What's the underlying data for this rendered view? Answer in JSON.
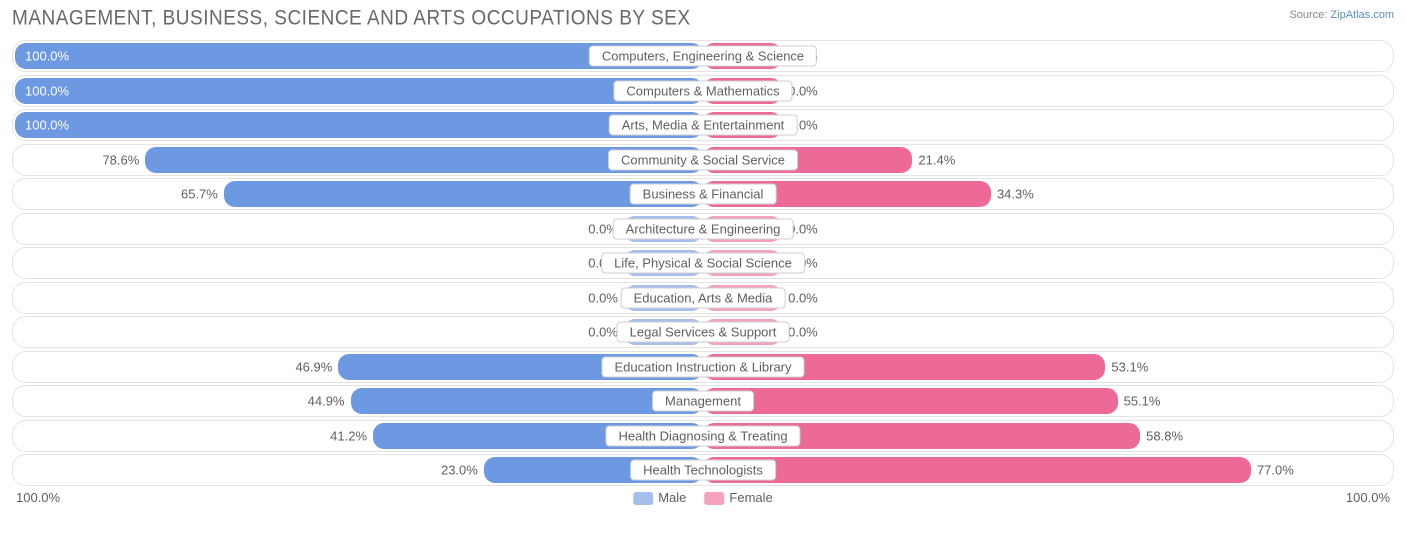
{
  "title": "MANAGEMENT, BUSINESS, SCIENCE AND ARTS OCCUPATIONS BY SEX",
  "source_label": "Source:",
  "source_name": "ZipAtlas.com",
  "axis": {
    "left": "100.0%",
    "right": "100.0%"
  },
  "legend": {
    "male": "Male",
    "female": "Female"
  },
  "colors": {
    "male": "#6d99e2",
    "male_faded": "#a4bfec",
    "female": "#ed6a98",
    "female_faded": "#f4a2be",
    "track_border": "#e3e3e3",
    "text": "#5f5f5f",
    "title": "#686868",
    "background": "#ffffff"
  },
  "base_bar_pct": 11.5,
  "rows": [
    {
      "label": "Computers, Engineering & Science",
      "male": 100.0,
      "female": 0.0,
      "faded": false,
      "male_label_inside": true
    },
    {
      "label": "Computers & Mathematics",
      "male": 100.0,
      "female": 0.0,
      "faded": false,
      "male_label_inside": true
    },
    {
      "label": "Arts, Media & Entertainment",
      "male": 100.0,
      "female": 0.0,
      "faded": false,
      "male_label_inside": true
    },
    {
      "label": "Community & Social Service",
      "male": 78.6,
      "female": 21.4,
      "faded": false,
      "male_label_inside": false
    },
    {
      "label": "Business & Financial",
      "male": 65.7,
      "female": 34.3,
      "faded": false,
      "male_label_inside": false
    },
    {
      "label": "Architecture & Engineering",
      "male": 0.0,
      "female": 0.0,
      "faded": true,
      "male_label_inside": false
    },
    {
      "label": "Life, Physical & Social Science",
      "male": 0.0,
      "female": 0.0,
      "faded": true,
      "male_label_inside": false
    },
    {
      "label": "Education, Arts & Media",
      "male": 0.0,
      "female": 0.0,
      "faded": true,
      "male_label_inside": false
    },
    {
      "label": "Legal Services & Support",
      "male": 0.0,
      "female": 0.0,
      "faded": true,
      "male_label_inside": false
    },
    {
      "label": "Education Instruction & Library",
      "male": 46.9,
      "female": 53.1,
      "faded": false,
      "male_label_inside": false
    },
    {
      "label": "Management",
      "male": 44.9,
      "female": 55.1,
      "faded": false,
      "male_label_inside": false
    },
    {
      "label": "Health Diagnosing & Treating",
      "male": 41.2,
      "female": 58.8,
      "faded": false,
      "male_label_inside": false
    },
    {
      "label": "Health Technologists",
      "male": 23.0,
      "female": 77.0,
      "faded": false,
      "male_label_inside": false
    }
  ]
}
